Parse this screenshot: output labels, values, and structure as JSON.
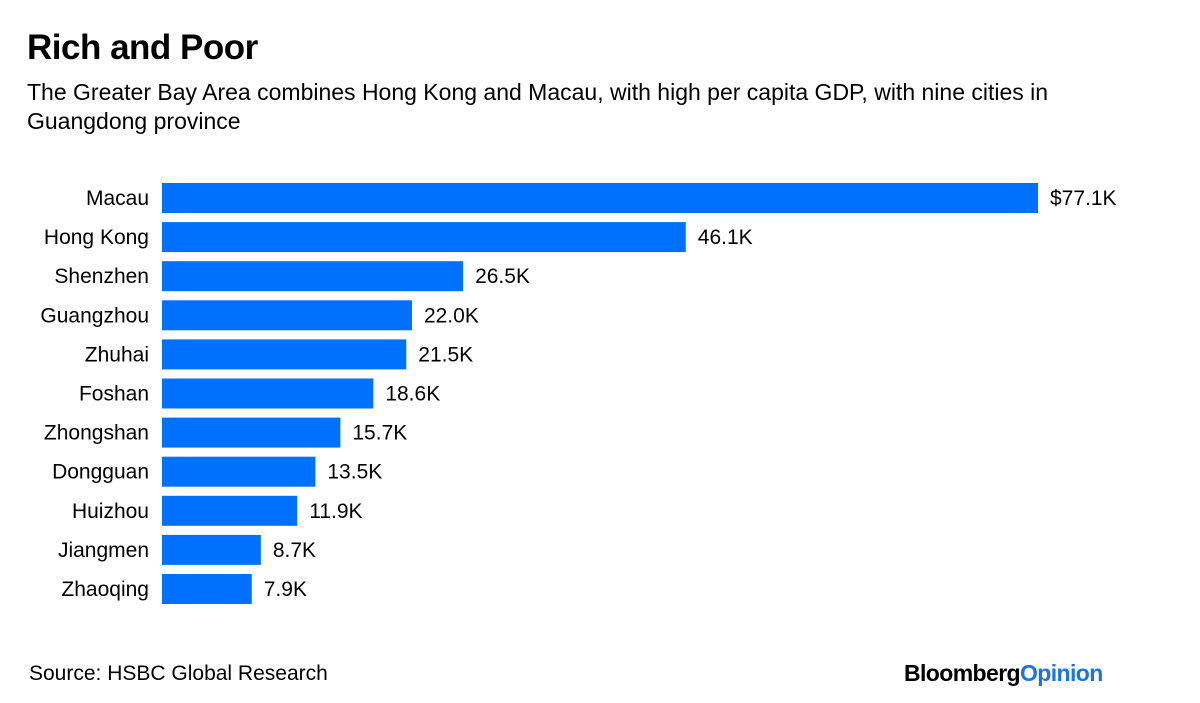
{
  "header": {
    "title": "Rich and Poor",
    "subtitle": "The Greater Bay Area combines Hong Kong and Macau, with high per capita GDP, with nine cities in Guangdong province"
  },
  "footer": {
    "source": "Source: HSBC Global Research",
    "logo_part1": "Bloomberg",
    "logo_part2": "Opinion"
  },
  "colors": {
    "bar": "#0070ff",
    "logo_accent": "#1a73e8"
  },
  "chart_data": {
    "type": "bar",
    "orientation": "horizontal",
    "title": "Rich and Poor",
    "subtitle": "The Greater Bay Area combines Hong Kong and Macau, with high per capita GDP, with nine cities in Guangdong province",
    "xlabel": "",
    "ylabel": "",
    "unit": "per capita GDP (USD thousands)",
    "categories": [
      "Macau",
      "Hong Kong",
      "Shenzhen",
      "Guangzhou",
      "Zhuhai",
      "Foshan",
      "Zhongshan",
      "Dongguan",
      "Huizhou",
      "Jiangmen",
      "Zhaoqing"
    ],
    "values": [
      77.1,
      46.1,
      26.5,
      22.0,
      21.5,
      18.6,
      15.7,
      13.5,
      11.9,
      8.7,
      7.9
    ],
    "data_labels": [
      "$77.1K",
      "46.1K",
      "26.5K",
      "22.0K",
      "21.5K",
      "18.6K",
      "15.7K",
      "13.5K",
      "11.9K",
      "8.7K",
      "7.9K"
    ],
    "xlim": [
      0,
      77.1
    ],
    "grid": false,
    "legend": "none"
  }
}
